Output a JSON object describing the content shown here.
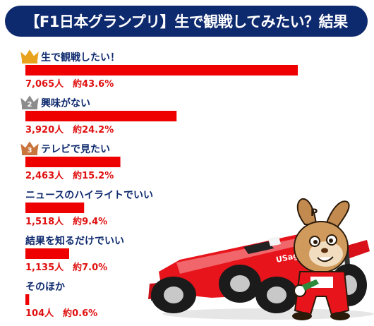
{
  "title": "【F1日本グランプリ】生で観戦してみたい？結果",
  "colors": {
    "header": "#0e2a6e",
    "bar": "#ee0000",
    "value_text": "#e01010",
    "label_text": "#0e2a6e",
    "gold": "#e8a21e",
    "silver": "#8c8c8c",
    "bronze": "#c8743c"
  },
  "rank_badges": [
    {
      "rank": 1,
      "icon": "gold-crown-icon",
      "number": ""
    },
    {
      "rank": 2,
      "icon": "silver-crown-icon",
      "number": "2"
    },
    {
      "rank": 3,
      "icon": "bronze-crown-icon",
      "number": "3"
    }
  ],
  "chart_data": {
    "type": "bar",
    "orientation": "horizontal",
    "title": "【F1日本グランプリ】生で観戦してみたい？結果",
    "categories": [
      "生で観戦したい！",
      "興味がない",
      "テレビで見たい",
      "ニュースのハイライトでいい",
      "結果を知るだけでいい",
      "そのほか"
    ],
    "values": [
      43.6,
      24.2,
      15.2,
      9.4,
      7.0,
      0.6
    ],
    "counts": [
      7065,
      3920,
      2463,
      1518,
      1135,
      104
    ],
    "value_labels": [
      "7,065人　約43.6%",
      "3,920人　約24.2%",
      "2,463人　約15.2%",
      "1,518人　約9.4%",
      "1,135人　約7.0%",
      "104人　約0.6%"
    ],
    "xlim": [
      0,
      43.6
    ],
    "grid": false,
    "legend": "none"
  },
  "illustration": {
    "icon": "f1-race-car-with-rabbit-mascot-icon",
    "car_text": "USagi"
  }
}
